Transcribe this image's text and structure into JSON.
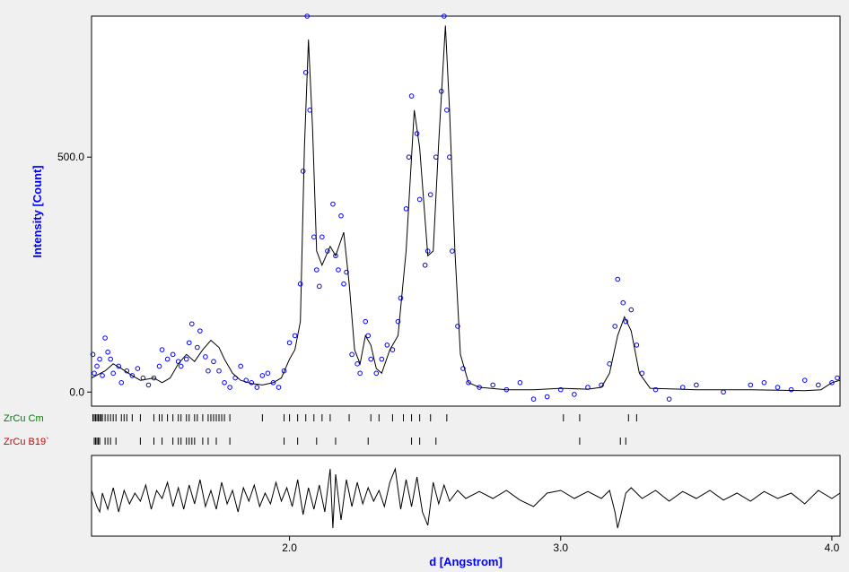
{
  "chart_data": {
    "type": "scatter",
    "xlabel": "d [Angstrom]",
    "ylabel": "Intensity [Count]",
    "xlim": [
      1.27,
      4.03
    ],
    "ylim": [
      -30,
      800
    ],
    "xticks": [
      {
        "value": 2.0,
        "label": "2.0"
      },
      {
        "value": 3.0,
        "label": "3.0"
      },
      {
        "value": 4.0,
        "label": "4.0"
      }
    ],
    "yticks": [
      {
        "value": 0,
        "label": "0.0"
      },
      {
        "value": 500,
        "label": "500.0"
      }
    ],
    "colors": {
      "observed": "#0000ff",
      "calculated": "#000000",
      "phase1": "#008000",
      "phase2": "#cc0000",
      "ylabel": "#0000ff",
      "xlabel": "#0000ff"
    },
    "calculated_curve": [
      [
        1.27,
        30
      ],
      [
        1.32,
        45
      ],
      [
        1.35,
        60
      ],
      [
        1.38,
        50
      ],
      [
        1.42,
        35
      ],
      [
        1.45,
        25
      ],
      [
        1.5,
        30
      ],
      [
        1.53,
        20
      ],
      [
        1.56,
        30
      ],
      [
        1.59,
        60
      ],
      [
        1.62,
        80
      ],
      [
        1.65,
        65
      ],
      [
        1.68,
        90
      ],
      [
        1.71,
        110
      ],
      [
        1.74,
        95
      ],
      [
        1.76,
        70
      ],
      [
        1.79,
        40
      ],
      [
        1.82,
        25
      ],
      [
        1.86,
        18
      ],
      [
        1.9,
        15
      ],
      [
        1.94,
        20
      ],
      [
        1.97,
        30
      ],
      [
        2.0,
        70
      ],
      [
        2.02,
        90
      ],
      [
        2.04,
        150
      ],
      [
        2.055,
        520
      ],
      [
        2.07,
        750
      ],
      [
        2.085,
        560
      ],
      [
        2.1,
        300
      ],
      [
        2.12,
        270
      ],
      [
        2.15,
        310
      ],
      [
        2.17,
        290
      ],
      [
        2.2,
        340
      ],
      [
        2.22,
        230
      ],
      [
        2.24,
        90
      ],
      [
        2.26,
        60
      ],
      [
        2.28,
        120
      ],
      [
        2.3,
        100
      ],
      [
        2.32,
        50
      ],
      [
        2.34,
        40
      ],
      [
        2.37,
        90
      ],
      [
        2.4,
        120
      ],
      [
        2.43,
        300
      ],
      [
        2.46,
        600
      ],
      [
        2.48,
        520
      ],
      [
        2.51,
        290
      ],
      [
        2.53,
        300
      ],
      [
        2.55,
        530
      ],
      [
        2.575,
        780
      ],
      [
        2.59,
        600
      ],
      [
        2.61,
        300
      ],
      [
        2.63,
        80
      ],
      [
        2.66,
        20
      ],
      [
        2.7,
        10
      ],
      [
        2.8,
        5
      ],
      [
        2.9,
        5
      ],
      [
        3.0,
        8
      ],
      [
        3.1,
        6
      ],
      [
        3.15,
        10
      ],
      [
        3.18,
        40
      ],
      [
        3.21,
        120
      ],
      [
        3.235,
        160
      ],
      [
        3.26,
        130
      ],
      [
        3.29,
        40
      ],
      [
        3.33,
        8
      ],
      [
        3.5,
        5
      ],
      [
        3.7,
        5
      ],
      [
        3.9,
        3
      ],
      [
        3.96,
        5
      ],
      [
        4.0,
        20
      ],
      [
        4.03,
        25
      ]
    ],
    "observed_points": [
      [
        1.275,
        80
      ],
      [
        1.28,
        40
      ],
      [
        1.29,
        55
      ],
      [
        1.3,
        70
      ],
      [
        1.31,
        35
      ],
      [
        1.32,
        115
      ],
      [
        1.33,
        85
      ],
      [
        1.34,
        70
      ],
      [
        1.35,
        40
      ],
      [
        1.37,
        55
      ],
      [
        1.38,
        20
      ],
      [
        1.4,
        45
      ],
      [
        1.42,
        35
      ],
      [
        1.44,
        50
      ],
      [
        1.46,
        30
      ],
      [
        1.48,
        15
      ],
      [
        1.5,
        30
      ],
      [
        1.52,
        55
      ],
      [
        1.53,
        90
      ],
      [
        1.55,
        70
      ],
      [
        1.57,
        80
      ],
      [
        1.59,
        65
      ],
      [
        1.6,
        55
      ],
      [
        1.62,
        70
      ],
      [
        1.63,
        105
      ],
      [
        1.64,
        145
      ],
      [
        1.66,
        95
      ],
      [
        1.67,
        130
      ],
      [
        1.69,
        75
      ],
      [
        1.7,
        45
      ],
      [
        1.72,
        65
      ],
      [
        1.74,
        45
      ],
      [
        1.76,
        20
      ],
      [
        1.78,
        10
      ],
      [
        1.8,
        30
      ],
      [
        1.82,
        55
      ],
      [
        1.84,
        25
      ],
      [
        1.86,
        20
      ],
      [
        1.88,
        10
      ],
      [
        1.9,
        35
      ],
      [
        1.92,
        40
      ],
      [
        1.94,
        20
      ],
      [
        1.96,
        10
      ],
      [
        1.98,
        45
      ],
      [
        2.0,
        105
      ],
      [
        2.02,
        120
      ],
      [
        2.04,
        230
      ],
      [
        2.05,
        470
      ],
      [
        2.06,
        680
      ],
      [
        2.065,
        800
      ],
      [
        2.075,
        600
      ],
      [
        2.09,
        330
      ],
      [
        2.1,
        260
      ],
      [
        2.11,
        225
      ],
      [
        2.12,
        330
      ],
      [
        2.14,
        300
      ],
      [
        2.16,
        400
      ],
      [
        2.17,
        290
      ],
      [
        2.18,
        260
      ],
      [
        2.19,
        375
      ],
      [
        2.2,
        230
      ],
      [
        2.21,
        255
      ],
      [
        2.23,
        80
      ],
      [
        2.25,
        60
      ],
      [
        2.26,
        40
      ],
      [
        2.28,
        150
      ],
      [
        2.29,
        120
      ],
      [
        2.3,
        70
      ],
      [
        2.32,
        40
      ],
      [
        2.34,
        70
      ],
      [
        2.36,
        100
      ],
      [
        2.38,
        90
      ],
      [
        2.4,
        150
      ],
      [
        2.41,
        200
      ],
      [
        2.43,
        390
      ],
      [
        2.44,
        500
      ],
      [
        2.45,
        630
      ],
      [
        2.47,
        550
      ],
      [
        2.48,
        410
      ],
      [
        2.5,
        270
      ],
      [
        2.51,
        300
      ],
      [
        2.52,
        420
      ],
      [
        2.54,
        500
      ],
      [
        2.56,
        640
      ],
      [
        2.57,
        800
      ],
      [
        2.58,
        600
      ],
      [
        2.59,
        500
      ],
      [
        2.6,
        300
      ],
      [
        2.62,
        140
      ],
      [
        2.64,
        50
      ],
      [
        2.66,
        20
      ],
      [
        2.7,
        10
      ],
      [
        2.75,
        15
      ],
      [
        2.8,
        5
      ],
      [
        2.85,
        20
      ],
      [
        2.9,
        -15
      ],
      [
        2.95,
        -10
      ],
      [
        3.0,
        5
      ],
      [
        3.05,
        -5
      ],
      [
        3.1,
        10
      ],
      [
        3.15,
        15
      ],
      [
        3.18,
        60
      ],
      [
        3.2,
        140
      ],
      [
        3.21,
        240
      ],
      [
        3.23,
        190
      ],
      [
        3.24,
        150
      ],
      [
        3.26,
        175
      ],
      [
        3.28,
        100
      ],
      [
        3.3,
        40
      ],
      [
        3.35,
        5
      ],
      [
        3.4,
        -15
      ],
      [
        3.45,
        10
      ],
      [
        3.5,
        15
      ],
      [
        3.6,
        0
      ],
      [
        3.7,
        15
      ],
      [
        3.75,
        20
      ],
      [
        3.8,
        10
      ],
      [
        3.85,
        5
      ],
      [
        3.9,
        25
      ],
      [
        3.95,
        15
      ],
      [
        4.0,
        20
      ],
      [
        4.02,
        30
      ]
    ],
    "phase_ticks": [
      {
        "name": "ZrCu Cm",
        "positions": [
          1.275,
          1.28,
          1.285,
          1.29,
          1.295,
          1.3,
          1.305,
          1.31,
          1.32,
          1.33,
          1.34,
          1.35,
          1.36,
          1.38,
          1.39,
          1.4,
          1.42,
          1.45,
          1.5,
          1.52,
          1.53,
          1.55,
          1.57,
          1.59,
          1.6,
          1.62,
          1.63,
          1.65,
          1.66,
          1.68,
          1.7,
          1.71,
          1.72,
          1.73,
          1.74,
          1.75,
          1.76,
          1.78,
          1.9,
          1.98,
          2.0,
          2.03,
          2.06,
          2.09,
          2.12,
          2.15,
          2.22,
          2.3,
          2.33,
          2.38,
          2.42,
          2.45,
          2.48,
          2.52,
          2.58,
          3.01,
          3.07,
          3.25,
          3.28
        ]
      },
      {
        "name": "ZrCu B19`",
        "positions": [
          1.28,
          1.285,
          1.29,
          1.295,
          1.3,
          1.32,
          1.33,
          1.34,
          1.36,
          1.45,
          1.5,
          1.53,
          1.57,
          1.59,
          1.6,
          1.62,
          1.63,
          1.64,
          1.65,
          1.68,
          1.7,
          1.73,
          1.78,
          1.98,
          2.03,
          2.1,
          2.17,
          2.29,
          2.45,
          2.48,
          2.54,
          3.07,
          3.22,
          3.24
        ]
      }
    ],
    "difference_curve": [
      [
        1.27,
        10
      ],
      [
        1.29,
        -20
      ],
      [
        1.3,
        -30
      ],
      [
        1.31,
        5
      ],
      [
        1.33,
        -25
      ],
      [
        1.35,
        15
      ],
      [
        1.37,
        -30
      ],
      [
        1.39,
        10
      ],
      [
        1.41,
        -15
      ],
      [
        1.43,
        5
      ],
      [
        1.45,
        -10
      ],
      [
        1.47,
        20
      ],
      [
        1.49,
        -25
      ],
      [
        1.51,
        10
      ],
      [
        1.53,
        -5
      ],
      [
        1.55,
        25
      ],
      [
        1.57,
        -20
      ],
      [
        1.59,
        15
      ],
      [
        1.61,
        -25
      ],
      [
        1.63,
        20
      ],
      [
        1.65,
        -15
      ],
      [
        1.67,
        30
      ],
      [
        1.69,
        -20
      ],
      [
        1.71,
        10
      ],
      [
        1.73,
        -25
      ],
      [
        1.75,
        25
      ],
      [
        1.77,
        -15
      ],
      [
        1.79,
        10
      ],
      [
        1.81,
        -30
      ],
      [
        1.83,
        15
      ],
      [
        1.85,
        -10
      ],
      [
        1.87,
        20
      ],
      [
        1.89,
        -20
      ],
      [
        1.91,
        5
      ],
      [
        1.93,
        -15
      ],
      [
        1.95,
        25
      ],
      [
        1.97,
        -10
      ],
      [
        1.99,
        15
      ],
      [
        2.01,
        -20
      ],
      [
        2.03,
        30
      ],
      [
        2.05,
        -35
      ],
      [
        2.07,
        15
      ],
      [
        2.09,
        -25
      ],
      [
        2.11,
        20
      ],
      [
        2.13,
        -30
      ],
      [
        2.15,
        50
      ],
      [
        2.16,
        -60
      ],
      [
        2.17,
        40
      ],
      [
        2.19,
        -45
      ],
      [
        2.21,
        30
      ],
      [
        2.23,
        -20
      ],
      [
        2.25,
        25
      ],
      [
        2.27,
        -15
      ],
      [
        2.29,
        15
      ],
      [
        2.31,
        -10
      ],
      [
        2.33,
        10
      ],
      [
        2.35,
        -20
      ],
      [
        2.37,
        25
      ],
      [
        2.39,
        50
      ],
      [
        2.41,
        -25
      ],
      [
        2.43,
        30
      ],
      [
        2.45,
        -20
      ],
      [
        2.47,
        35
      ],
      [
        2.49,
        -30
      ],
      [
        2.51,
        -55
      ],
      [
        2.53,
        25
      ],
      [
        2.55,
        -15
      ],
      [
        2.57,
        20
      ],
      [
        2.59,
        -10
      ],
      [
        2.62,
        10
      ],
      [
        2.65,
        -5
      ],
      [
        2.7,
        8
      ],
      [
        2.75,
        -5
      ],
      [
        2.8,
        10
      ],
      [
        2.85,
        -8
      ],
      [
        2.9,
        -20
      ],
      [
        2.95,
        5
      ],
      [
        3.0,
        10
      ],
      [
        3.05,
        -5
      ],
      [
        3.1,
        8
      ],
      [
        3.15,
        -5
      ],
      [
        3.18,
        10
      ],
      [
        3.2,
        -30
      ],
      [
        3.21,
        -60
      ],
      [
        3.22,
        -40
      ],
      [
        3.24,
        5
      ],
      [
        3.26,
        15
      ],
      [
        3.3,
        -5
      ],
      [
        3.35,
        10
      ],
      [
        3.4,
        -10
      ],
      [
        3.45,
        8
      ],
      [
        3.5,
        -5
      ],
      [
        3.55,
        10
      ],
      [
        3.6,
        -8
      ],
      [
        3.65,
        5
      ],
      [
        3.7,
        -10
      ],
      [
        3.75,
        8
      ],
      [
        3.8,
        -5
      ],
      [
        3.85,
        5
      ],
      [
        3.9,
        -15
      ],
      [
        3.95,
        10
      ],
      [
        4.0,
        -5
      ],
      [
        4.03,
        5
      ]
    ]
  }
}
